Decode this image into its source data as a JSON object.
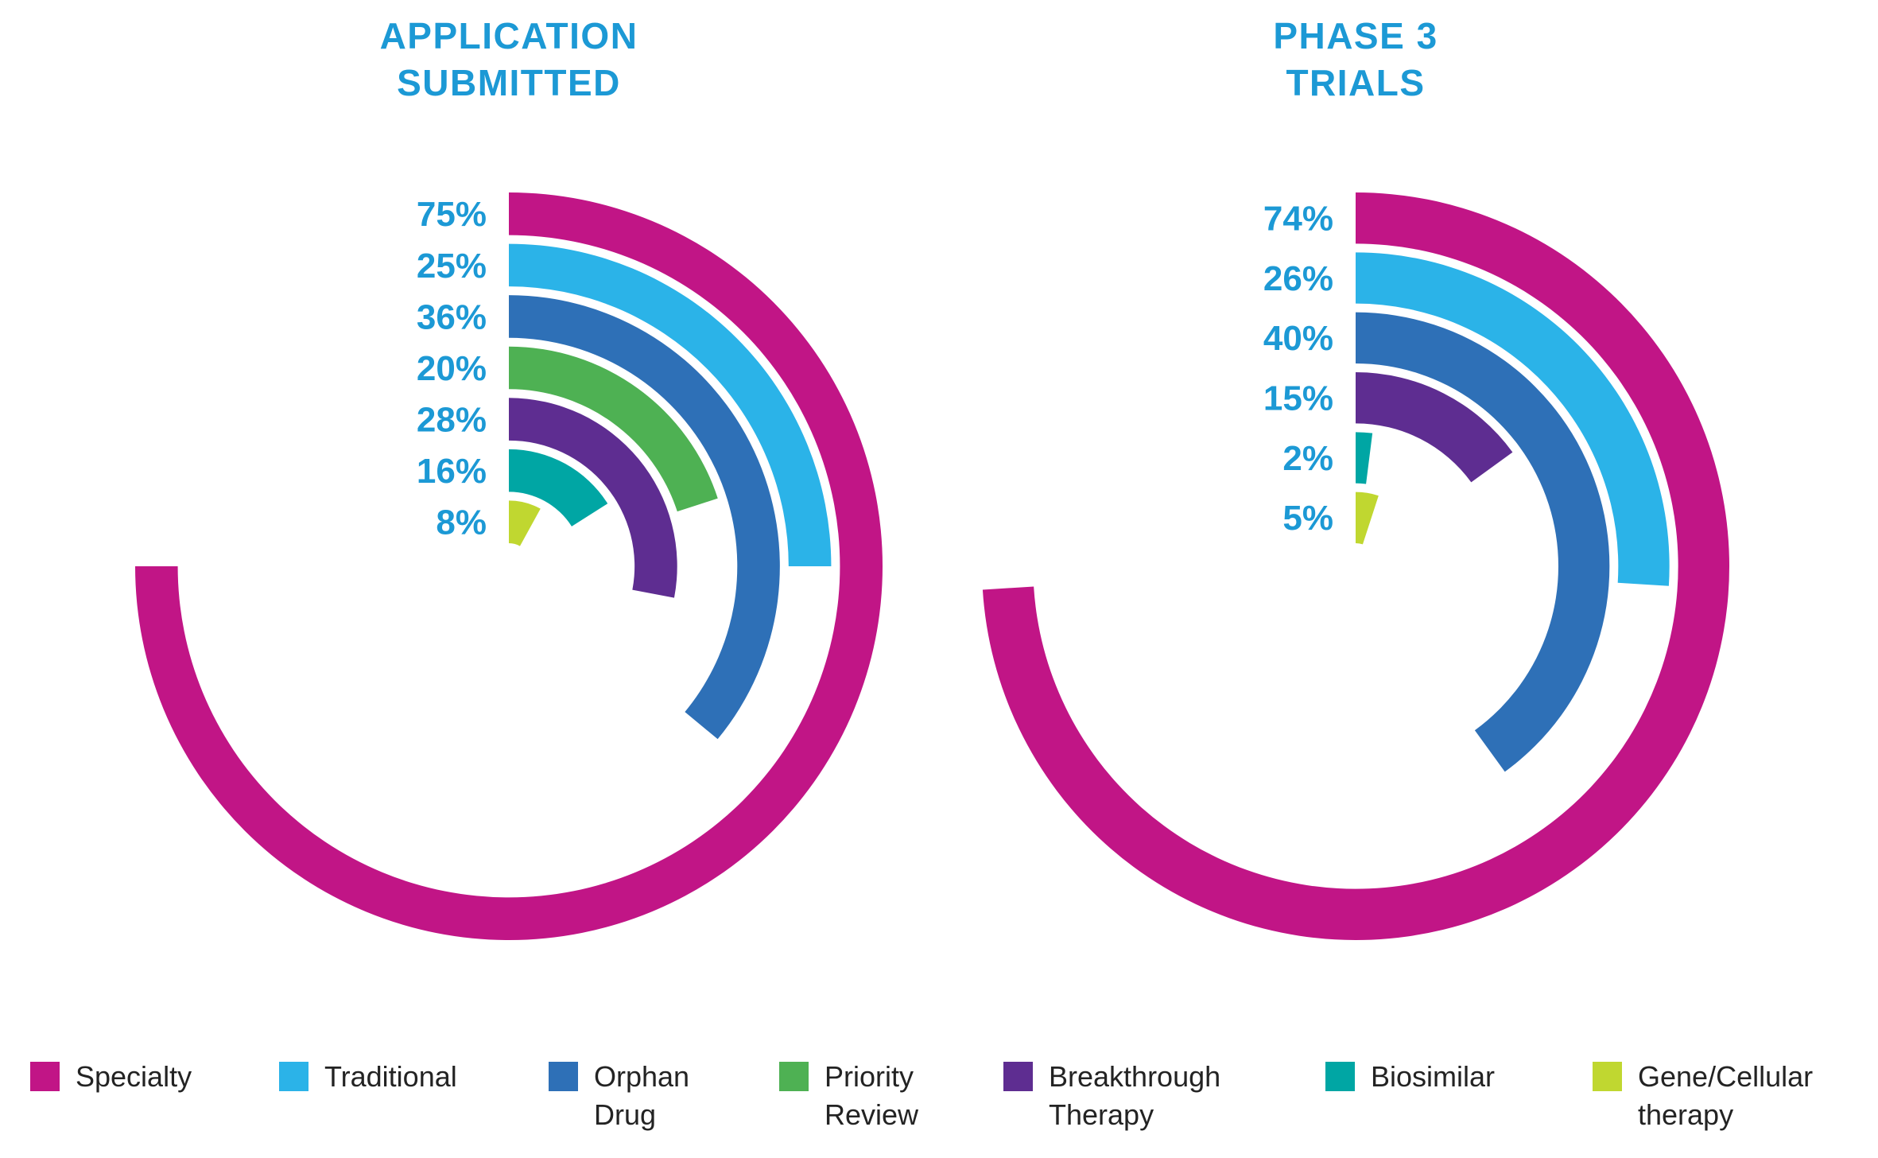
{
  "colors": {
    "background": "#FFFFFF",
    "label_blue": "#1C99D5",
    "legend_text": "#232323",
    "specialty": "#C11586",
    "traditional": "#2BB3E8",
    "orphan_drug": "#2E70B7",
    "priority_review": "#4EB153",
    "breakthrough_therapy": "#5E2D91",
    "biosimilar": "#00A6A4",
    "gene_cellular_therapy": "#C0D730"
  },
  "legend": {
    "items": [
      {
        "id": "specialty",
        "label": "Specialty",
        "color": "#C11586"
      },
      {
        "id": "traditional",
        "label": "Traditional",
        "color": "#2BB3E8"
      },
      {
        "id": "orphan-drug",
        "label": "Orphan\nDrug",
        "color": "#2E70B7"
      },
      {
        "id": "priority-review",
        "label": "Priority\nReview",
        "color": "#4EB153"
      },
      {
        "id": "breakthrough-therapy",
        "label": "Breakthrough\nTherapy",
        "color": "#5E2D91"
      },
      {
        "id": "biosimilar",
        "label": "Biosimilar",
        "color": "#00A6A4"
      },
      {
        "id": "gene-cellular-therapy",
        "label": "Gene/Cellular\ntherapy",
        "color": "#C0D730"
      }
    ]
  },
  "chart_data": [
    {
      "type": "radial-bar",
      "title": "APPLICATION\nSUBMITTED",
      "start_angle_deg": 0,
      "direction": "clockwise",
      "value_unit": "%",
      "value_to_degrees": 3.6,
      "rings": [
        {
          "category_id": "specialty",
          "category": "Specialty",
          "value": 75,
          "label": "75%"
        },
        {
          "category_id": "traditional",
          "category": "Traditional",
          "value": 25,
          "label": "25%"
        },
        {
          "category_id": "orphan-drug",
          "category": "Orphan Drug",
          "value": 36,
          "label": "36%"
        },
        {
          "category_id": "priority-review",
          "category": "Priority Review",
          "value": 20,
          "label": "20%"
        },
        {
          "category_id": "breakthrough-therapy",
          "category": "Breakthrough Therapy",
          "value": 28,
          "label": "28%"
        },
        {
          "category_id": "biosimilar",
          "category": "Biosimilar",
          "value": 16,
          "label": "16%"
        },
        {
          "category_id": "gene-cellular-therapy",
          "category": "Gene/Cellular therapy",
          "value": 8,
          "label": "8%"
        }
      ]
    },
    {
      "type": "radial-bar",
      "title": "PHASE 3\nTRIALS",
      "start_angle_deg": 0,
      "direction": "clockwise",
      "value_unit": "%",
      "value_to_degrees": 3.6,
      "rings": [
        {
          "category_id": "specialty",
          "category": "Specialty",
          "value": 74,
          "label": "74%"
        },
        {
          "category_id": "traditional",
          "category": "Traditional",
          "value": 26,
          "label": "26%"
        },
        {
          "category_id": "orphan-drug",
          "category": "Orphan Drug",
          "value": 40,
          "label": "40%"
        },
        {
          "category_id": "breakthrough-therapy",
          "category": "Breakthrough Therapy",
          "value": 15,
          "label": "15%"
        },
        {
          "category_id": "biosimilar",
          "category": "Biosimilar",
          "value": 2,
          "label": "2%"
        },
        {
          "category_id": "gene-cellular-therapy",
          "category": "Gene/Cellular therapy",
          "value": 5,
          "label": "5%"
        }
      ]
    }
  ]
}
